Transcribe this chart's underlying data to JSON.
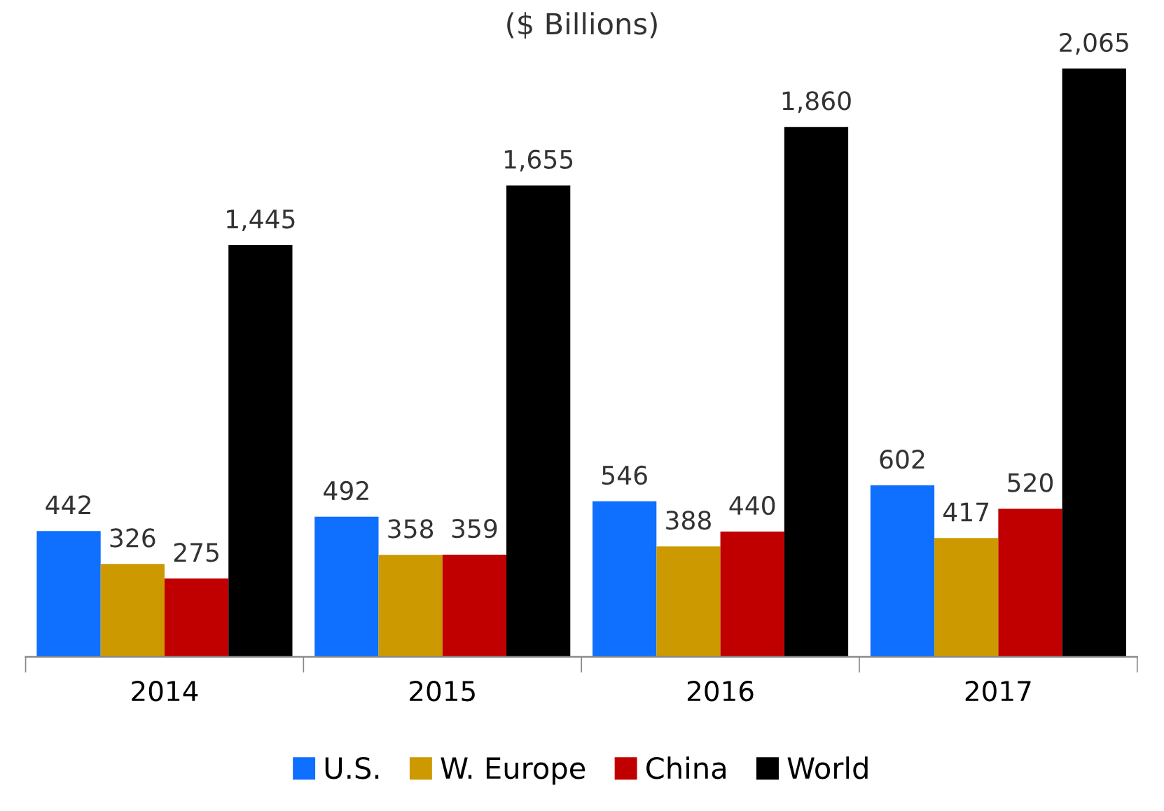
{
  "chart_data": {
    "type": "bar",
    "title": "($ Billions)",
    "categories": [
      "2014",
      "2015",
      "2016",
      "2017"
    ],
    "series": [
      {
        "name": "U.S.",
        "color": "#0f6fff",
        "values": [
          442,
          492,
          546,
          602
        ],
        "value_labels": [
          "442",
          "492",
          "546",
          "602"
        ]
      },
      {
        "name": "W. Europe",
        "color": "#cc9900",
        "values": [
          326,
          358,
          388,
          417
        ],
        "value_labels": [
          "326",
          "358",
          "388",
          "417"
        ]
      },
      {
        "name": "China",
        "color": "#c00000",
        "values": [
          275,
          359,
          440,
          520
        ],
        "value_labels": [
          "275",
          "359",
          "440",
          "520"
        ]
      },
      {
        "name": "World",
        "color": "#000000",
        "values": [
          1445,
          1655,
          1860,
          2065
        ],
        "value_labels": [
          "1,445",
          "1,655",
          "1,860",
          "2,065"
        ]
      }
    ],
    "grid": false,
    "legend": "bottom"
  }
}
